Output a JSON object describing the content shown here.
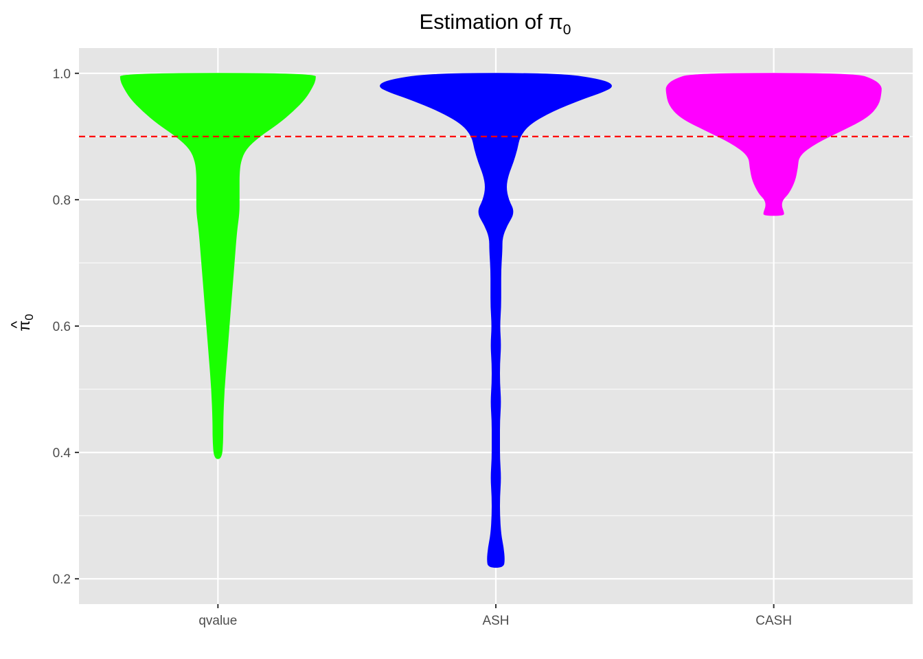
{
  "chart_data": {
    "type": "violin",
    "title": "Estimation of π",
    "title_subscript": "0",
    "xlabel": "",
    "ylabel": "π",
    "ylabel_hat": "^",
    "ylabel_subscript": "0",
    "categories": [
      "qvalue",
      "ASH",
      "CASH"
    ],
    "ylim": [
      0.16,
      1.04
    ],
    "yticks": [
      0.2,
      0.4,
      0.6,
      0.8,
      1.0
    ],
    "ytick_labels": [
      "0.2",
      "0.4",
      "0.6",
      "0.8",
      "1.0"
    ],
    "grid": true,
    "reference_line": {
      "y": 0.9,
      "color": "#ff0000",
      "style": "dashed"
    },
    "series": [
      {
        "category": "qvalue",
        "color": "#1aff00",
        "min": 0.39,
        "max": 1.0,
        "profile": [
          [
            0.39,
            0.03
          ],
          [
            0.42,
            0.04
          ],
          [
            0.45,
            0.04
          ],
          [
            0.5,
            0.05
          ],
          [
            0.55,
            0.07
          ],
          [
            0.6,
            0.09
          ],
          [
            0.65,
            0.11
          ],
          [
            0.7,
            0.13
          ],
          [
            0.75,
            0.15
          ],
          [
            0.78,
            0.17
          ],
          [
            0.8,
            0.17
          ],
          [
            0.82,
            0.17
          ],
          [
            0.84,
            0.17
          ],
          [
            0.86,
            0.18
          ],
          [
            0.88,
            0.22
          ],
          [
            0.9,
            0.33
          ],
          [
            0.92,
            0.48
          ],
          [
            0.94,
            0.6
          ],
          [
            0.96,
            0.7
          ],
          [
            0.98,
            0.76
          ],
          [
            0.99,
            0.78
          ],
          [
            1.0,
            0.78
          ]
        ]
      },
      {
        "category": "ASH",
        "color": "#0000ff",
        "min": 0.218,
        "max": 1.0,
        "profile": [
          [
            0.218,
            0.06
          ],
          [
            0.23,
            0.07
          ],
          [
            0.25,
            0.06
          ],
          [
            0.27,
            0.04
          ],
          [
            0.3,
            0.03
          ],
          [
            0.33,
            0.03
          ],
          [
            0.36,
            0.04
          ],
          [
            0.39,
            0.03
          ],
          [
            0.42,
            0.03
          ],
          [
            0.45,
            0.03
          ],
          [
            0.48,
            0.04
          ],
          [
            0.51,
            0.03
          ],
          [
            0.54,
            0.03
          ],
          [
            0.57,
            0.04
          ],
          [
            0.6,
            0.03
          ],
          [
            0.63,
            0.04
          ],
          [
            0.66,
            0.04
          ],
          [
            0.69,
            0.04
          ],
          [
            0.72,
            0.05
          ],
          [
            0.74,
            0.05
          ],
          [
            0.76,
            0.09
          ],
          [
            0.78,
            0.15
          ],
          [
            0.8,
            0.1
          ],
          [
            0.82,
            0.08
          ],
          [
            0.84,
            0.1
          ],
          [
            0.86,
            0.14
          ],
          [
            0.88,
            0.17
          ],
          [
            0.9,
            0.19
          ],
          [
            0.92,
            0.27
          ],
          [
            0.94,
            0.45
          ],
          [
            0.96,
            0.7
          ],
          [
            0.97,
            0.85
          ],
          [
            0.98,
            0.95
          ],
          [
            0.99,
            0.85
          ],
          [
            1.0,
            0.5
          ]
        ]
      },
      {
        "category": "CASH",
        "color": "#ff00ff",
        "min": 0.775,
        "max": 1.0,
        "profile": [
          [
            0.775,
            0.08
          ],
          [
            0.78,
            0.08
          ],
          [
            0.79,
            0.06
          ],
          [
            0.8,
            0.07
          ],
          [
            0.81,
            0.12
          ],
          [
            0.83,
            0.17
          ],
          [
            0.85,
            0.19
          ],
          [
            0.87,
            0.2
          ],
          [
            0.89,
            0.34
          ],
          [
            0.91,
            0.55
          ],
          [
            0.93,
            0.75
          ],
          [
            0.95,
            0.84
          ],
          [
            0.97,
            0.86
          ],
          [
            0.98,
            0.86
          ],
          [
            0.99,
            0.8
          ],
          [
            1.0,
            0.65
          ]
        ]
      }
    ]
  }
}
